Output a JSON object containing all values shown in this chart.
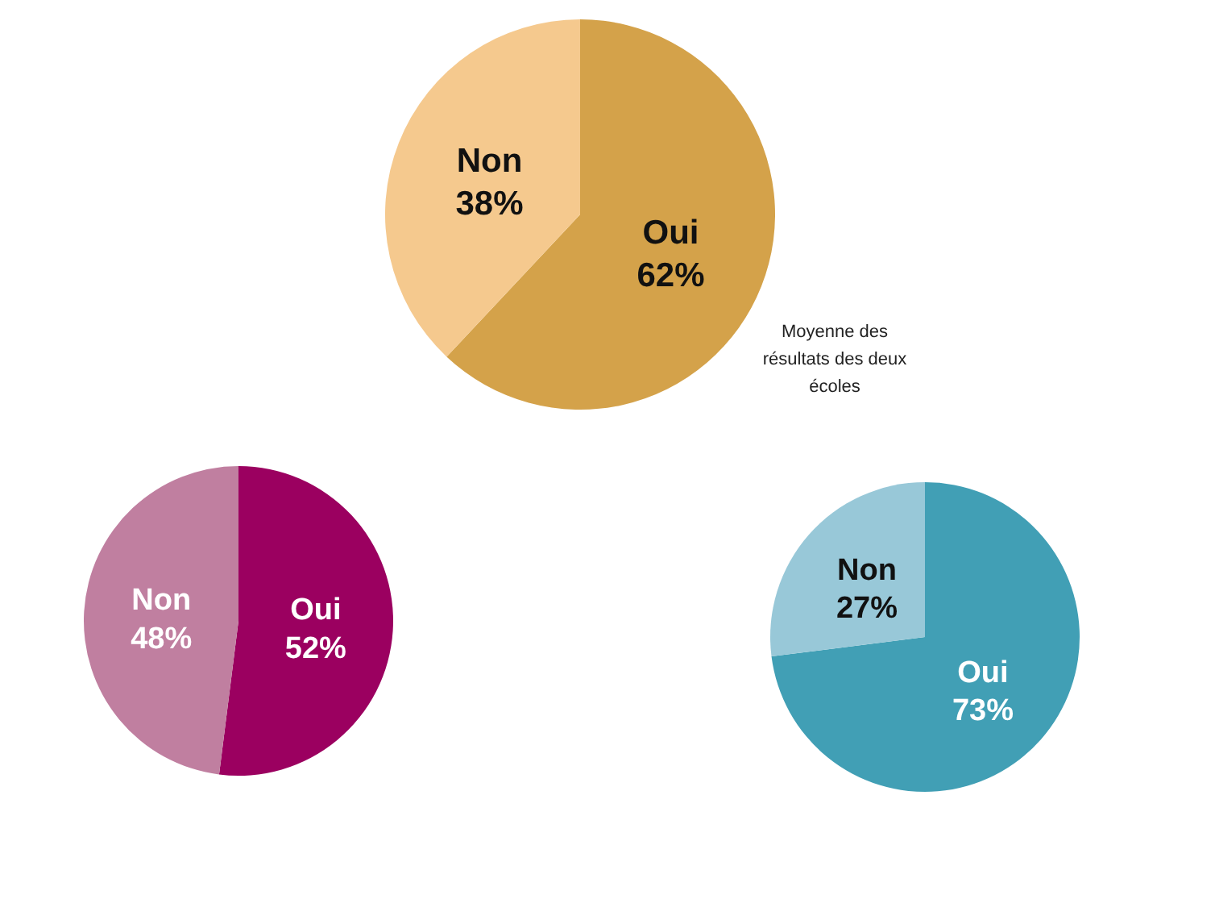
{
  "chart_data": [
    {
      "type": "pie",
      "categories": [
        "Oui",
        "Non"
      ],
      "values": [
        62,
        38
      ],
      "colors": [
        "#d4a24a",
        "#f5c98e"
      ],
      "value_labels": [
        "62%",
        "38%"
      ],
      "annotations": [
        "Moyenne des résultats des deux écoles"
      ]
    },
    {
      "type": "pie",
      "categories": [
        "Oui",
        "Non"
      ],
      "values": [
        52,
        48
      ],
      "colors": [
        "#9b0060",
        "#c07fa0"
      ],
      "value_labels": [
        "52%",
        "48%"
      ]
    },
    {
      "type": "pie",
      "categories": [
        "Oui",
        "Non"
      ],
      "values": [
        73,
        27
      ],
      "colors": [
        "#419fb5",
        "#98c8d8"
      ],
      "value_labels": [
        "73%",
        "27%"
      ]
    }
  ]
}
